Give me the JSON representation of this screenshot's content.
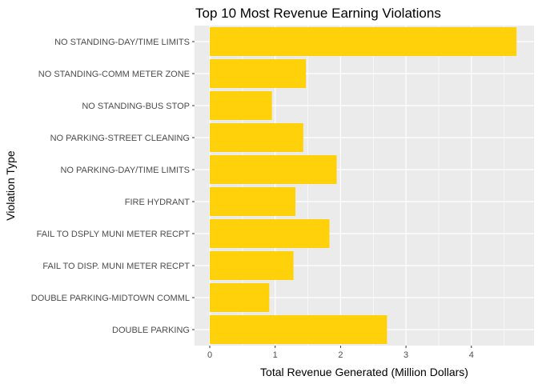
{
  "chart_data": {
    "type": "bar",
    "orientation": "horizontal",
    "title": "Top 10 Most Revenue Earning Violations",
    "xlabel": "Total Revenue Generated (Million Dollars)",
    "ylabel": "Violation Type",
    "xlim": [
      0,
      4.7
    ],
    "xticks": [
      0,
      1,
      2,
      3,
      4
    ],
    "grid": true,
    "legend": "none",
    "colors": {
      "bar": "#FFD10A",
      "panel": "#EBEBEB",
      "grid": "#FFFFFF"
    },
    "categories": [
      "NO STANDING-DAY/TIME LIMITS",
      "NO STANDING-COMM METER ZONE",
      "NO STANDING-BUS STOP",
      "NO PARKING-STREET CLEANING",
      "NO PARKING-DAY/TIME LIMITS",
      "FIRE HYDRANT",
      "FAIL TO DSPLY MUNI METER RECPT",
      "FAIL TO DISP. MUNI METER RECPT",
      "DOUBLE PARKING-MIDTOWN COMML",
      "DOUBLE PARKING"
    ],
    "values": [
      4.69,
      1.47,
      0.95,
      1.43,
      1.94,
      1.31,
      1.83,
      1.28,
      0.91,
      2.71
    ]
  }
}
